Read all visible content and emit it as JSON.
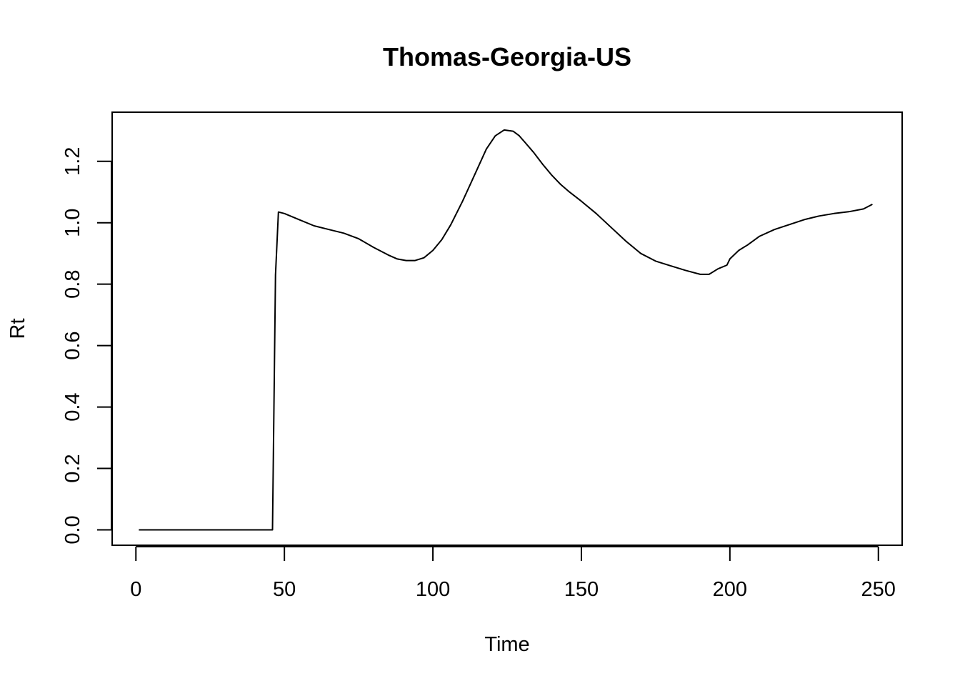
{
  "chart_data": {
    "type": "line",
    "title": "Thomas-Georgia-US",
    "xlabel": "Time",
    "ylabel": "Rt",
    "xlim": [
      -8,
      258
    ],
    "ylim": [
      -0.05,
      1.36
    ],
    "x_ticks": [
      0,
      50,
      100,
      150,
      200,
      250
    ],
    "y_ticks": [
      0.0,
      0.2,
      0.4,
      0.6,
      0.8,
      1.0,
      1.2
    ],
    "x_tick_labels": [
      "0",
      "50",
      "100",
      "150",
      "200",
      "250"
    ],
    "y_tick_labels": [
      "0.0",
      "0.2",
      "0.4",
      "0.6",
      "0.8",
      "1.0",
      "1.2"
    ],
    "grid": false,
    "legend": "none",
    "line_color": "#000000",
    "series": [
      {
        "x": [
          1,
          10,
          20,
          30,
          40,
          46,
          47,
          48,
          50,
          55,
          60,
          65,
          70,
          75,
          80,
          85,
          88,
          91,
          94,
          97,
          100,
          103,
          106,
          110,
          114,
          118,
          121,
          124,
          127,
          129,
          131,
          134,
          137,
          140,
          143,
          146,
          150,
          155,
          160,
          165,
          170,
          175,
          180,
          185,
          190,
          193,
          196,
          199,
          200,
          203,
          206,
          210,
          215,
          220,
          225,
          230,
          235,
          240,
          245,
          248
        ],
        "y": [
          0.0,
          0.0,
          0.0,
          0.0,
          0.0,
          0.0,
          0.83,
          1.035,
          1.03,
          1.01,
          0.99,
          0.978,
          0.966,
          0.948,
          0.92,
          0.895,
          0.882,
          0.877,
          0.877,
          0.886,
          0.91,
          0.945,
          0.993,
          1.07,
          1.155,
          1.24,
          1.283,
          1.302,
          1.298,
          1.284,
          1.262,
          1.228,
          1.19,
          1.155,
          1.125,
          1.1,
          1.07,
          1.03,
          0.985,
          0.94,
          0.9,
          0.875,
          0.86,
          0.845,
          0.832,
          0.832,
          0.85,
          0.862,
          0.882,
          0.91,
          0.928,
          0.956,
          0.978,
          0.994,
          1.01,
          1.022,
          1.03,
          1.036,
          1.045,
          1.06
        ]
      }
    ]
  }
}
